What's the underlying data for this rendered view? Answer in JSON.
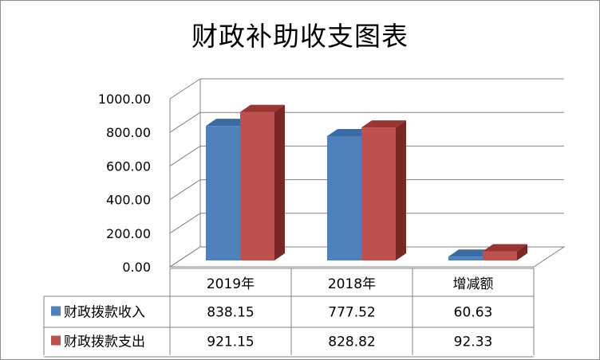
{
  "chart_data": {
    "type": "bar",
    "title": "财政补助收支图表",
    "categories": [
      "2019年",
      "2018年",
      "增减额"
    ],
    "series": [
      {
        "name": "财政拨款收入",
        "values": [
          838.15,
          777.52,
          60.63
        ],
        "value_labels": [
          "838.15",
          "777.52",
          "60.63"
        ],
        "color": "#4f81bd",
        "side_color": "#2c5180",
        "top_color": "#3a6ba3"
      },
      {
        "name": "财政拨款支出",
        "values": [
          921.15,
          828.82,
          92.33
        ],
        "value_labels": [
          "921.15",
          "828.82",
          "92.33"
        ],
        "color": "#c0504d",
        "side_color": "#7a2623",
        "top_color": "#9b3532"
      }
    ],
    "ylim": [
      0,
      1000
    ],
    "y_ticks": [
      0,
      200,
      400,
      600,
      800,
      1000
    ],
    "y_tick_labels": [
      "0.00",
      "200.00",
      "400.00",
      "600.00",
      "800.00",
      "1000.00"
    ],
    "grid": true,
    "style": "3d-clustered-column",
    "data_table": true,
    "legend": "in-data-table"
  }
}
